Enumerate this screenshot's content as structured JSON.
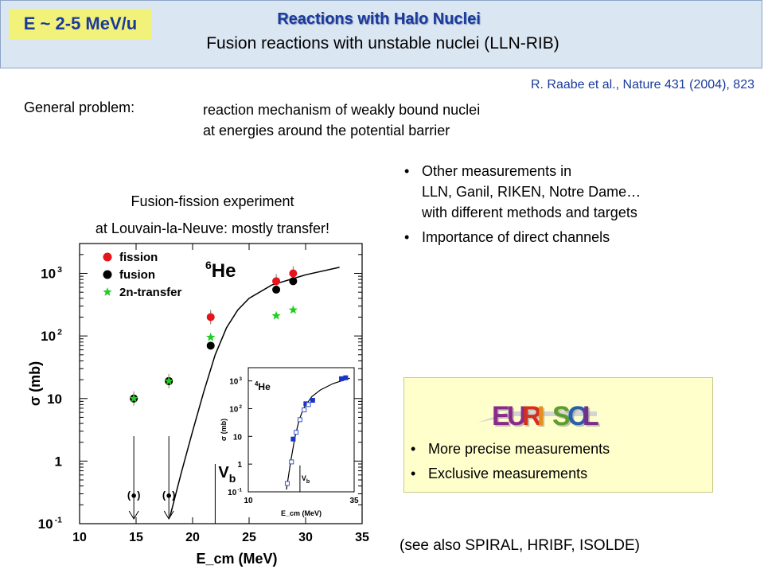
{
  "header": {
    "energy_badge": "E ~ 2-5 MeV/u",
    "title": "Reactions with Halo Nuclei",
    "subtitle": "Fusion reactions with unstable nuclei (LLN-RIB)"
  },
  "reference": "R. Raabe et al., Nature 431 (2004), 823",
  "general_problem": {
    "label": "General problem:",
    "line1": "reaction mechanism of weakly bound nuclei",
    "line2": "at energies around the potential barrier"
  },
  "bullets": [
    {
      "lines": [
        "Other measurements in",
        "LLN, Ganil, RIKEN, Notre Dame…",
        "with different methods and targets"
      ]
    },
    {
      "lines": [
        "Importance of direct channels"
      ]
    }
  ],
  "experiment_caption": {
    "line1": "Fusion-fission experiment",
    "line2": "at Louvain-la-Neuve: mostly transfer!"
  },
  "eurisol_panel": {
    "logo_text": "EURISOL",
    "items": [
      "More precise measurements",
      "Exclusive measurements"
    ]
  },
  "see_also": "(see also SPIRAL, HRIBF, ISOLDE)",
  "chart_data": [
    {
      "type": "scatter",
      "title": "",
      "annotation": "6He",
      "xlabel": "E_cm (MeV)",
      "ylabel": "σ (mb)",
      "xlim": [
        10,
        35
      ],
      "ylim": [
        0.1,
        3000
      ],
      "yscale": "log",
      "x_ticks": [
        "10",
        "15",
        "20",
        "25",
        "30",
        "35"
      ],
      "y_ticks": [
        {
          "value": 0.1,
          "base": "10",
          "exp": "-1"
        },
        {
          "value": 1,
          "base": "1",
          "exp": ""
        },
        {
          "value": 10,
          "base": "10",
          "exp": ""
        },
        {
          "value": 100,
          "base": "10",
          "exp": "2"
        },
        {
          "value": 1000,
          "base": "10",
          "exp": "3"
        }
      ],
      "legend": [
        {
          "name": "fission",
          "color": "#e8141c"
        },
        {
          "name": "fusion",
          "color": "#000000"
        },
        {
          "name": "2n-transfer",
          "color": "#22cc22"
        }
      ],
      "legend_position": "top-left",
      "series": [
        {
          "name": "fission",
          "points": [
            [
              14.8,
              10
            ],
            [
              17.9,
              19
            ],
            [
              21.6,
              200
            ],
            [
              27.4,
              750
            ],
            [
              28.9,
              1000
            ]
          ]
        },
        {
          "name": "fusion",
          "points": [
            [
              14.8,
              10
            ],
            [
              17.9,
              19
            ],
            [
              21.6,
              70
            ],
            [
              27.4,
              550
            ],
            [
              28.9,
              750
            ]
          ]
        },
        {
          "name": "2n-transfer",
          "points": [
            [
              14.8,
              10
            ],
            [
              17.9,
              19
            ],
            [
              21.6,
              95
            ],
            [
              27.4,
              210
            ],
            [
              28.9,
              260
            ]
          ]
        }
      ],
      "upper_limits": [
        {
          "x": 14.8,
          "label": "(●)"
        },
        {
          "x": 17.9,
          "label": "(●)"
        }
      ],
      "curve": [
        [
          18,
          0.13
        ],
        [
          19,
          0.65
        ],
        [
          20,
          3
        ],
        [
          21,
          13
        ],
        [
          22,
          50
        ],
        [
          23,
          135
        ],
        [
          24,
          260
        ],
        [
          25,
          400
        ],
        [
          27,
          650
        ],
        [
          30,
          950
        ],
        [
          33,
          1250
        ]
      ],
      "barrier": {
        "x": 22,
        "label": "V",
        "sub": "b"
      }
    },
    {
      "type": "scatter",
      "title": "",
      "annotation": "4He",
      "xlabel": "E_cm (MeV)",
      "ylabel": "σ (mb)",
      "xlim": [
        10,
        35
      ],
      "ylim": [
        0.1,
        3000
      ],
      "yscale": "log",
      "x_ticks": [
        "10",
        "35"
      ],
      "y_ticks": [
        {
          "value": 0.1,
          "base": "10",
          "exp": "-1"
        },
        {
          "value": 1,
          "base": "1",
          "exp": ""
        },
        {
          "value": 10,
          "base": "10",
          "exp": ""
        },
        {
          "value": 100,
          "base": "10",
          "exp": "2"
        },
        {
          "value": 1000,
          "base": "10",
          "exp": "3"
        }
      ],
      "series": [
        {
          "name": "filled",
          "points": [
            [
              20.6,
              8
            ],
            [
              23.6,
              150
            ],
            [
              25.2,
              200
            ],
            [
              32,
              1200
            ],
            [
              33,
              1300
            ]
          ]
        },
        {
          "name": "open",
          "points": [
            [
              19.2,
              0.2
            ],
            [
              20.2,
              1.2
            ],
            [
              21.3,
              14
            ],
            [
              22.2,
              40
            ],
            [
              23.2,
              90
            ],
            [
              24.2,
              140
            ]
          ]
        }
      ],
      "curve": [
        [
          19,
          0.12
        ],
        [
          20,
          1.2
        ],
        [
          21,
          9
        ],
        [
          22,
          38
        ],
        [
          23,
          100
        ],
        [
          25,
          270
        ],
        [
          27,
          470
        ],
        [
          30,
          800
        ],
        [
          34,
          1250
        ]
      ],
      "barrier": {
        "x": 22.2,
        "label": "V",
        "sub": "b"
      }
    }
  ]
}
